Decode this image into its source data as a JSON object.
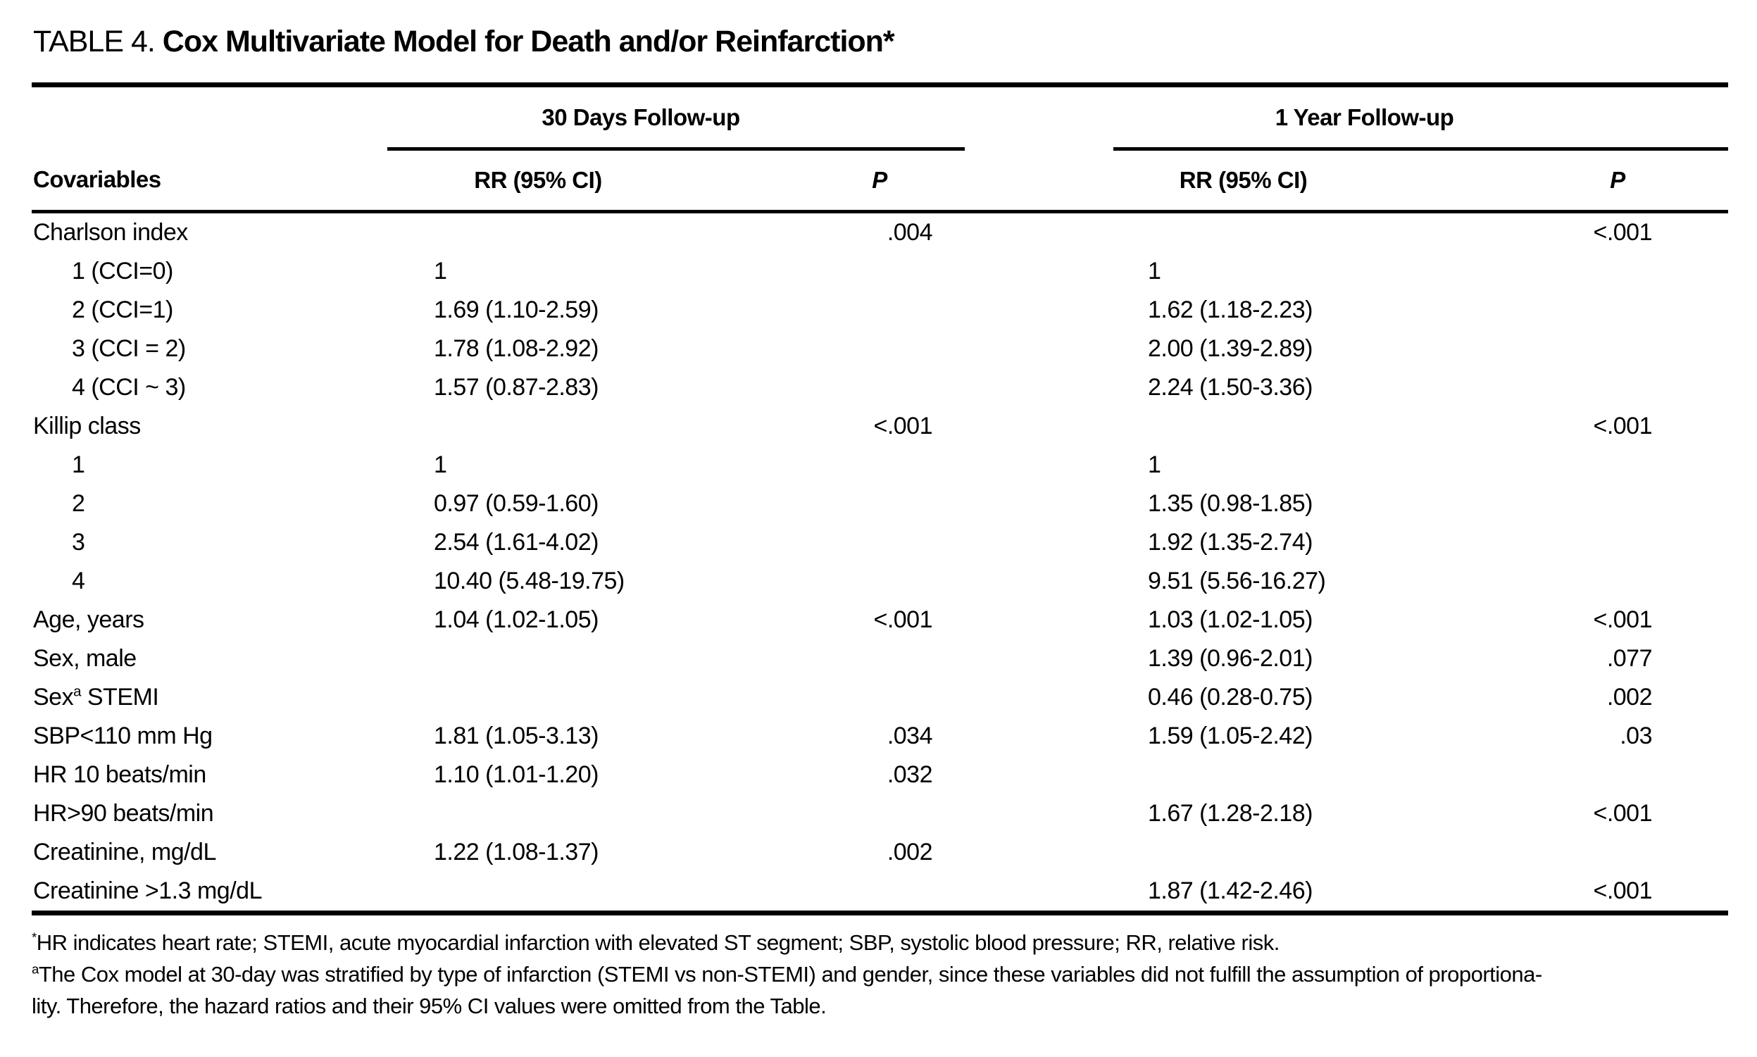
{
  "table": {
    "label": "TABLE 4.",
    "title": "Cox Multivariate Model for Death and/or Reinfarction*",
    "header": {
      "covariables": "Covariables",
      "group_30d": "30 Days Follow-up",
      "group_1y": "1 Year Follow-up",
      "rr_30d": "RR (95% CI)",
      "p_30d": "P",
      "rr_1y": "RR (95% CI)",
      "p_1y": "P"
    },
    "rows": [
      {
        "label": "Charlson index",
        "indent": 0,
        "rr30": "",
        "p30": ".004",
        "rr1y": "",
        "p1y": "<.001"
      },
      {
        "label": "1 (CCI=0)",
        "indent": 1,
        "rr30": "1",
        "p30": "",
        "rr1y": "1",
        "p1y": ""
      },
      {
        "label": "2 (CCI=1)",
        "indent": 1,
        "rr30": "1.69 (1.10-2.59)",
        "p30": "",
        "rr1y": "1.62 (1.18-2.23)",
        "p1y": ""
      },
      {
        "label": "3 (CCI = 2)",
        "indent": 1,
        "rr30": "1.78 (1.08-2.92)",
        "p30": "",
        "rr1y": "2.00 (1.39-2.89)",
        "p1y": ""
      },
      {
        "label": "4 (CCI ~ 3)",
        "indent": 1,
        "rr30": "1.57 (0.87-2.83)",
        "p30": "",
        "rr1y": "2.24 (1.50-3.36)",
        "p1y": ""
      },
      {
        "label": "Killip class",
        "indent": 0,
        "rr30": "",
        "p30": "<.001",
        "rr1y": "",
        "p1y": "<.001"
      },
      {
        "label": "1",
        "indent": 1,
        "rr30": "1",
        "p30": "",
        "rr1y": "1",
        "p1y": ""
      },
      {
        "label": "2",
        "indent": 1,
        "rr30": "0.97 (0.59-1.60)",
        "p30": "",
        "rr1y": "1.35 (0.98-1.85)",
        "p1y": ""
      },
      {
        "label": "3",
        "indent": 1,
        "rr30": "2.54 (1.61-4.02)",
        "p30": "",
        "rr1y": "1.92 (1.35-2.74)",
        "p1y": ""
      },
      {
        "label": "4",
        "indent": 1,
        "rr30": "10.40 (5.48-19.75)",
        "p30": "",
        "rr1y": "9.51 (5.56-16.27)",
        "p1y": ""
      },
      {
        "label": "Age, years",
        "indent": 0,
        "rr30": "1.04 (1.02-1.05)",
        "p30": "<.001",
        "rr1y": "1.03 (1.02-1.05)",
        "p1y": "<.001"
      },
      {
        "label": "Sex, male",
        "indent": 0,
        "rr30": "",
        "p30": "",
        "rr1y": "1.39 (0.96-2.01)",
        "p1y": ".077"
      },
      {
        "label": "Sex",
        "sup": "a",
        "label_after": " STEMI",
        "indent": 0,
        "rr30": "",
        "p30": "",
        "rr1y": "0.46 (0.28-0.75)",
        "p1y": ".002"
      },
      {
        "label": "SBP<110 mm Hg",
        "indent": 0,
        "rr30": "1.81 (1.05-3.13)",
        "p30": ".034",
        "rr1y": "1.59 (1.05-2.42)",
        "p1y": ".03"
      },
      {
        "label": "HR 10 beats/min",
        "indent": 0,
        "rr30": "1.10 (1.01-1.20)",
        "p30": ".032",
        "rr1y": "",
        "p1y": ""
      },
      {
        "label": "HR>90 beats/min",
        "indent": 0,
        "rr30": "",
        "p30": "",
        "rr1y": "1.67 (1.28-2.18)",
        "p1y": "<.001"
      },
      {
        "label": "Creatinine, mg/dL",
        "indent": 0,
        "rr30": "1.22 (1.08-1.37)",
        "p30": ".002",
        "rr1y": "",
        "p1y": ""
      },
      {
        "label": "Creatinine >1.3 mg/dL",
        "indent": 0,
        "rr30": "",
        "p30": "",
        "rr1y": "1.87 (1.42-2.46)",
        "p1y": "<.001"
      }
    ],
    "footnotes": [
      {
        "sup": "*",
        "text": "HR indicates heart rate; STEMI, acute myocardial infarction with elevated ST segment; SBP, systolic blood pressure; RR, relative risk."
      },
      {
        "sup": "a",
        "text": "The Cox model at 30-day was stratified by type of infarction (STEMI vs non-STEMI) and gender, since these variables did not fulfill the assumption of proportiona-"
      },
      {
        "sup": "",
        "text": "lity. Therefore, the hazard ratios and their 95% CI values were omitted from the Table."
      }
    ]
  }
}
